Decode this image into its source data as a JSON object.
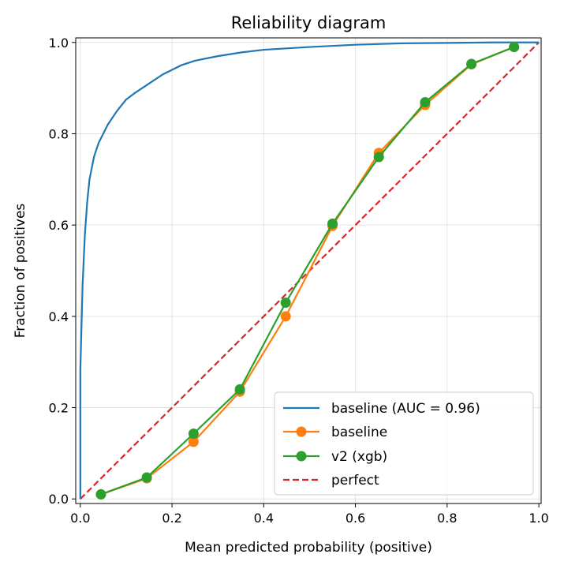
{
  "chart_data": {
    "type": "line",
    "title": "Reliability diagram",
    "xlabel": "Mean predicted probability (positive)",
    "ylabel": "Fraction of positives",
    "xlim": [
      -0.01,
      1.005
    ],
    "ylim": [
      -0.01,
      1.01
    ],
    "xticks": [
      "0.0",
      "0.2",
      "0.4",
      "0.6",
      "0.8",
      "1.0"
    ],
    "yticks": [
      "0.0",
      "0.2",
      "0.4",
      "0.6",
      "0.8",
      "1.0"
    ],
    "grid": true,
    "legend_position": "lower-right",
    "series": [
      {
        "name": "baseline (AUC = 0.96)",
        "color": "#1f77b4",
        "marker": "none",
        "x": [
          0.0,
          0.0,
          0.005,
          0.01,
          0.015,
          0.02,
          0.03,
          0.04,
          0.05,
          0.06,
          0.08,
          0.1,
          0.12,
          0.15,
          0.18,
          0.22,
          0.25,
          0.3,
          0.35,
          0.4,
          0.5,
          0.6,
          0.7,
          0.8,
          0.9,
          1.0
        ],
        "y": [
          0.0,
          0.28,
          0.47,
          0.58,
          0.65,
          0.7,
          0.75,
          0.78,
          0.8,
          0.82,
          0.85,
          0.875,
          0.89,
          0.91,
          0.93,
          0.95,
          0.96,
          0.97,
          0.978,
          0.984,
          0.99,
          0.995,
          0.998,
          0.999,
          1.0,
          1.0
        ]
      },
      {
        "name": "baseline",
        "color": "#ff7f0e",
        "marker": "circle",
        "x": [
          0.045,
          0.145,
          0.247,
          0.348,
          0.448,
          0.55,
          0.651,
          0.752,
          0.853,
          0.946
        ],
        "y": [
          0.01,
          0.045,
          0.125,
          0.235,
          0.4,
          0.598,
          0.758,
          0.863,
          0.952,
          0.99
        ]
      },
      {
        "name": "v2 (xgb)",
        "color": "#2ca02c",
        "marker": "circle",
        "x": [
          0.045,
          0.145,
          0.247,
          0.348,
          0.448,
          0.55,
          0.651,
          0.752,
          0.853,
          0.946
        ],
        "y": [
          0.01,
          0.047,
          0.143,
          0.24,
          0.43,
          0.603,
          0.749,
          0.869,
          0.953,
          0.99
        ]
      },
      {
        "name": "perfect",
        "color": "#d62728",
        "marker": "none",
        "dashed": true,
        "x": [
          0.0,
          1.0
        ],
        "y": [
          0.0,
          1.0
        ]
      }
    ]
  }
}
